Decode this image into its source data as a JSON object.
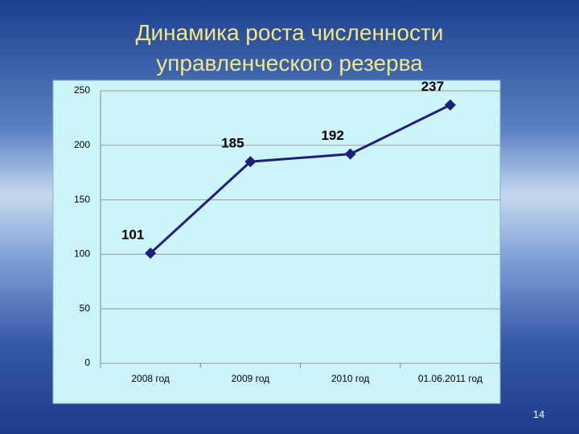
{
  "chart_data": {
    "type": "line",
    "title": "Динамика роста численности управленческого резерва",
    "categories": [
      "2008 год",
      "2009 год",
      "2010 год",
      "01.06.2011 год"
    ],
    "values": [
      101,
      185,
      192,
      237
    ],
    "color": "#1f1f7a",
    "ylim": [
      0,
      250
    ],
    "yticks": [
      0,
      50,
      100,
      150,
      200,
      250
    ],
    "grid": true
  },
  "slide_number": "14"
}
